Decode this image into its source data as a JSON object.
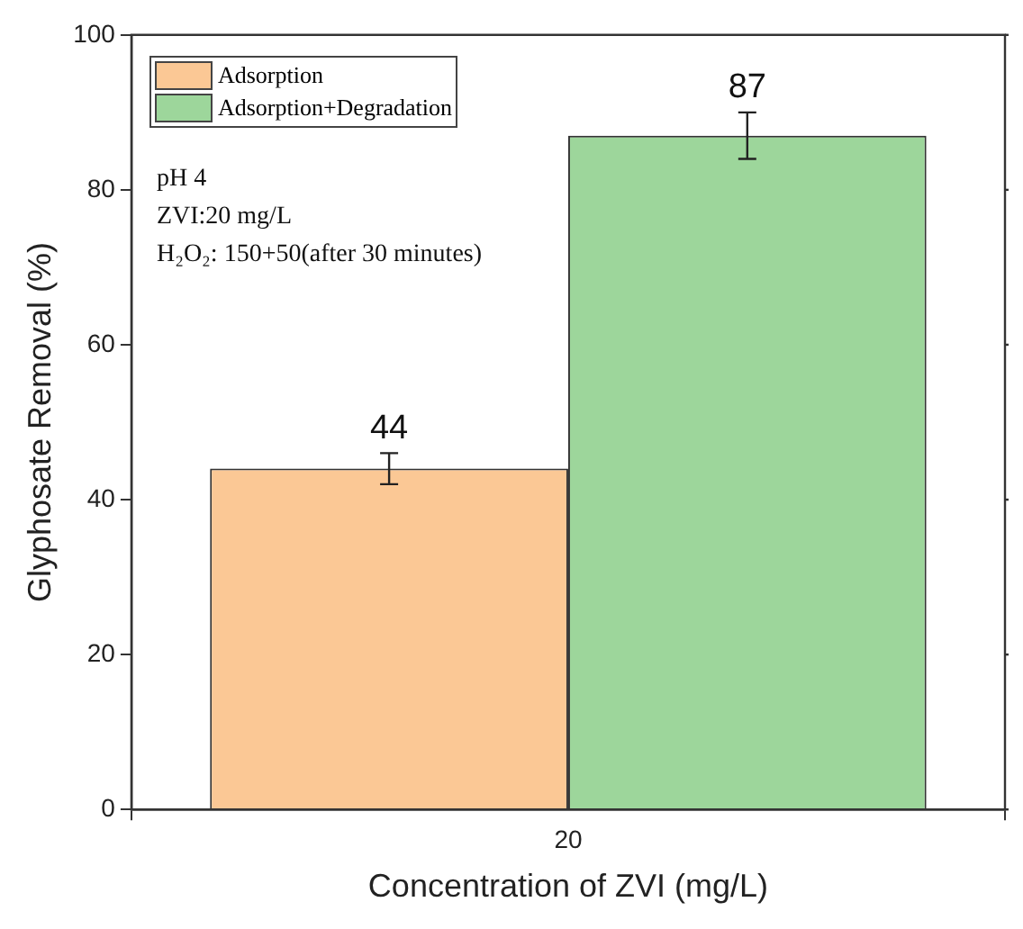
{
  "chart_data": {
    "type": "bar",
    "xlabel": "Concentration of ZVI (mg/L)",
    "ylabel": "Glyphosate Removal (%)",
    "categories": [
      "20"
    ],
    "series": [
      {
        "name": "Adsorption",
        "color": "#fbc895",
        "values": [
          44
        ],
        "errors": [
          2
        ]
      },
      {
        "name": "Adsorption+Degradation",
        "color": "#9dd69b",
        "values": [
          87
        ],
        "errors": [
          3
        ]
      }
    ],
    "ylim": [
      0,
      100
    ],
    "yticks": [
      0,
      20,
      40,
      60,
      80,
      100
    ],
    "grid": false,
    "legend": "top left",
    "data_labels": true,
    "annotations": [
      "pH 4",
      "ZVI:20 mg/L",
      "H₂O₂: 150+50(after 30 minutes)"
    ]
  }
}
